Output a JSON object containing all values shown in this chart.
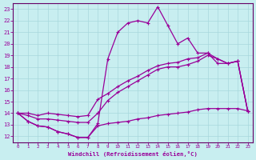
{
  "xlabel": "Windchill (Refroidissement éolien,°C)",
  "background_color": "#c8eef0",
  "grid_color": "#a8d8dc",
  "line_color": "#990099",
  "spine_color": "#660066",
  "xlim": [
    -0.5,
    23.5
  ],
  "ylim": [
    11.5,
    23.5
  ],
  "xticks": [
    0,
    1,
    2,
    3,
    4,
    5,
    6,
    7,
    8,
    9,
    10,
    11,
    12,
    13,
    14,
    15,
    16,
    17,
    18,
    19,
    20,
    21,
    22,
    23
  ],
  "yticks": [
    12,
    13,
    14,
    15,
    16,
    17,
    18,
    19,
    20,
    21,
    22,
    23
  ],
  "series1_x": [
    0,
    1,
    2,
    3,
    4,
    5,
    6,
    7,
    8,
    9,
    10,
    11,
    12,
    13,
    14,
    15,
    16,
    17,
    18,
    19,
    20,
    21,
    22,
    23
  ],
  "series1_y": [
    14.0,
    13.3,
    12.9,
    12.8,
    12.4,
    12.2,
    11.9,
    11.9,
    13.1,
    18.7,
    21.0,
    21.8,
    22.0,
    21.8,
    23.2,
    21.6,
    20.0,
    20.5,
    19.2,
    19.2,
    18.3,
    18.3,
    18.5,
    14.2
  ],
  "series2_x": [
    0,
    1,
    2,
    3,
    4,
    5,
    6,
    7,
    8,
    9,
    10,
    11,
    12,
    13,
    14,
    15,
    16,
    17,
    18,
    19,
    20,
    21,
    22,
    23
  ],
  "series2_y": [
    14.0,
    13.3,
    12.9,
    12.8,
    12.4,
    12.2,
    11.9,
    11.9,
    12.9,
    13.1,
    13.2,
    13.3,
    13.5,
    13.6,
    13.8,
    13.9,
    14.0,
    14.1,
    14.3,
    14.4,
    14.4,
    14.4,
    14.4,
    14.2
  ],
  "series3_x": [
    0,
    1,
    2,
    3,
    4,
    5,
    6,
    7,
    8,
    9,
    10,
    11,
    12,
    13,
    14,
    15,
    16,
    17,
    18,
    19,
    20,
    21,
    22,
    23
  ],
  "series3_y": [
    14.0,
    13.8,
    13.5,
    13.5,
    13.4,
    13.3,
    13.2,
    13.2,
    14.0,
    15.1,
    15.8,
    16.3,
    16.8,
    17.3,
    17.8,
    18.0,
    18.0,
    18.2,
    18.5,
    19.0,
    18.7,
    18.3,
    18.5,
    14.2
  ],
  "series4_x": [
    0,
    1,
    2,
    3,
    4,
    5,
    6,
    7,
    8,
    9,
    10,
    11,
    12,
    13,
    14,
    15,
    16,
    17,
    18,
    19,
    20,
    21,
    22,
    23
  ],
  "series4_y": [
    14.0,
    14.0,
    13.8,
    14.0,
    13.9,
    13.8,
    13.7,
    13.8,
    15.2,
    15.7,
    16.3,
    16.8,
    17.2,
    17.7,
    18.1,
    18.3,
    18.4,
    18.7,
    18.8,
    19.2,
    18.7,
    18.3,
    18.5,
    14.2
  ]
}
